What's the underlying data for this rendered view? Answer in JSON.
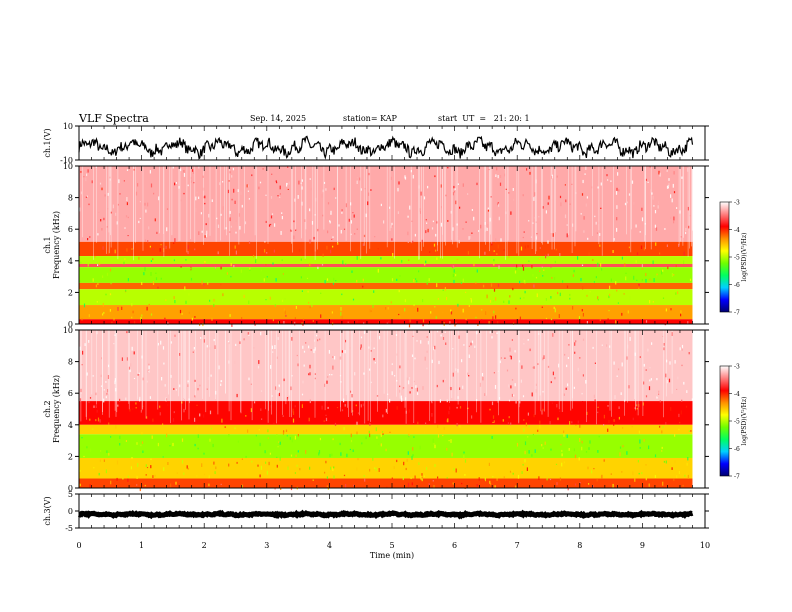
{
  "header": {
    "title": "VLF Spectra",
    "date": "Sep. 14, 2025",
    "station": "station= KAP",
    "start": "start  UT  =   21: 20: 1"
  },
  "chart_data": {
    "type": "heatmap",
    "title": "VLF Spectra",
    "xlabel": "Time  (min)",
    "xlim": [
      0,
      10
    ],
    "xticks": [
      0,
      1,
      2,
      3,
      4,
      5,
      6,
      7,
      8,
      9,
      10
    ],
    "data_extent_min": 9.8,
    "panels": [
      {
        "id": "ch1-waveform",
        "kind": "line",
        "ylabel": "ch.1(V)",
        "ylim": [
          -10,
          10
        ],
        "yticks": [
          10,
          -10
        ],
        "mean_level": -2.5,
        "amplitude": 5
      },
      {
        "id": "ch1-spectrogram",
        "kind": "heatmap",
        "ylabel": "ch.1 Frequency  (kHz)",
        "ylim": [
          0,
          10
        ],
        "yticks": [
          0,
          2,
          4,
          6,
          8,
          10
        ],
        "bands_khz": [
          {
            "from": 5.2,
            "to": 10,
            "level": -3.3
          },
          {
            "from": 4.3,
            "to": 5.2,
            "level": -4.1
          },
          {
            "from": 3.8,
            "to": 4.3,
            "level": -5.0
          },
          {
            "from": 3.6,
            "to": 3.8,
            "level": -3.6
          },
          {
            "from": 2.6,
            "to": 3.6,
            "level": -5.1
          },
          {
            "from": 2.2,
            "to": 2.6,
            "level": -4.2
          },
          {
            "from": 1.2,
            "to": 2.2,
            "level": -5.0
          },
          {
            "from": 0.3,
            "to": 1.2,
            "level": -4.4
          },
          {
            "from": 0,
            "to": 0.3,
            "level": -3.9
          }
        ]
      },
      {
        "id": "ch2-spectrogram",
        "kind": "heatmap",
        "ylabel": "ch.2 Frequency  (kHz)",
        "ylim": [
          0,
          10
        ],
        "yticks": [
          0,
          2,
          4,
          6,
          8,
          10
        ],
        "bands_khz": [
          {
            "from": 5.5,
            "to": 10,
            "level": -3.2
          },
          {
            "from": 4.0,
            "to": 5.5,
            "level": -3.9
          },
          {
            "from": 3.4,
            "to": 4.0,
            "level": -4.6
          },
          {
            "from": 1.9,
            "to": 3.4,
            "level": -5.1
          },
          {
            "from": 0.6,
            "to": 1.9,
            "level": -4.6
          },
          {
            "from": 0,
            "to": 0.6,
            "level": -4.1
          }
        ]
      },
      {
        "id": "ch3-waveform",
        "kind": "line",
        "ylabel": "ch.3(V)",
        "ylim": [
          -5,
          5
        ],
        "yticks": [
          5,
          0,
          -5
        ],
        "mean_level": -1,
        "amplitude": 0.3
      }
    ],
    "colorbar": {
      "label": "log(PSD)(V²/Hz)",
      "range": [
        -7,
        -3
      ],
      "ticks": [
        -3,
        -4,
        -5,
        -6,
        -7
      ],
      "colors": [
        "#000070",
        "#0000ff",
        "#00d0ff",
        "#00ff60",
        "#70ff00",
        "#ffff00",
        "#ff9000",
        "#ff0000",
        "#ff8080",
        "#ffffff"
      ]
    }
  }
}
